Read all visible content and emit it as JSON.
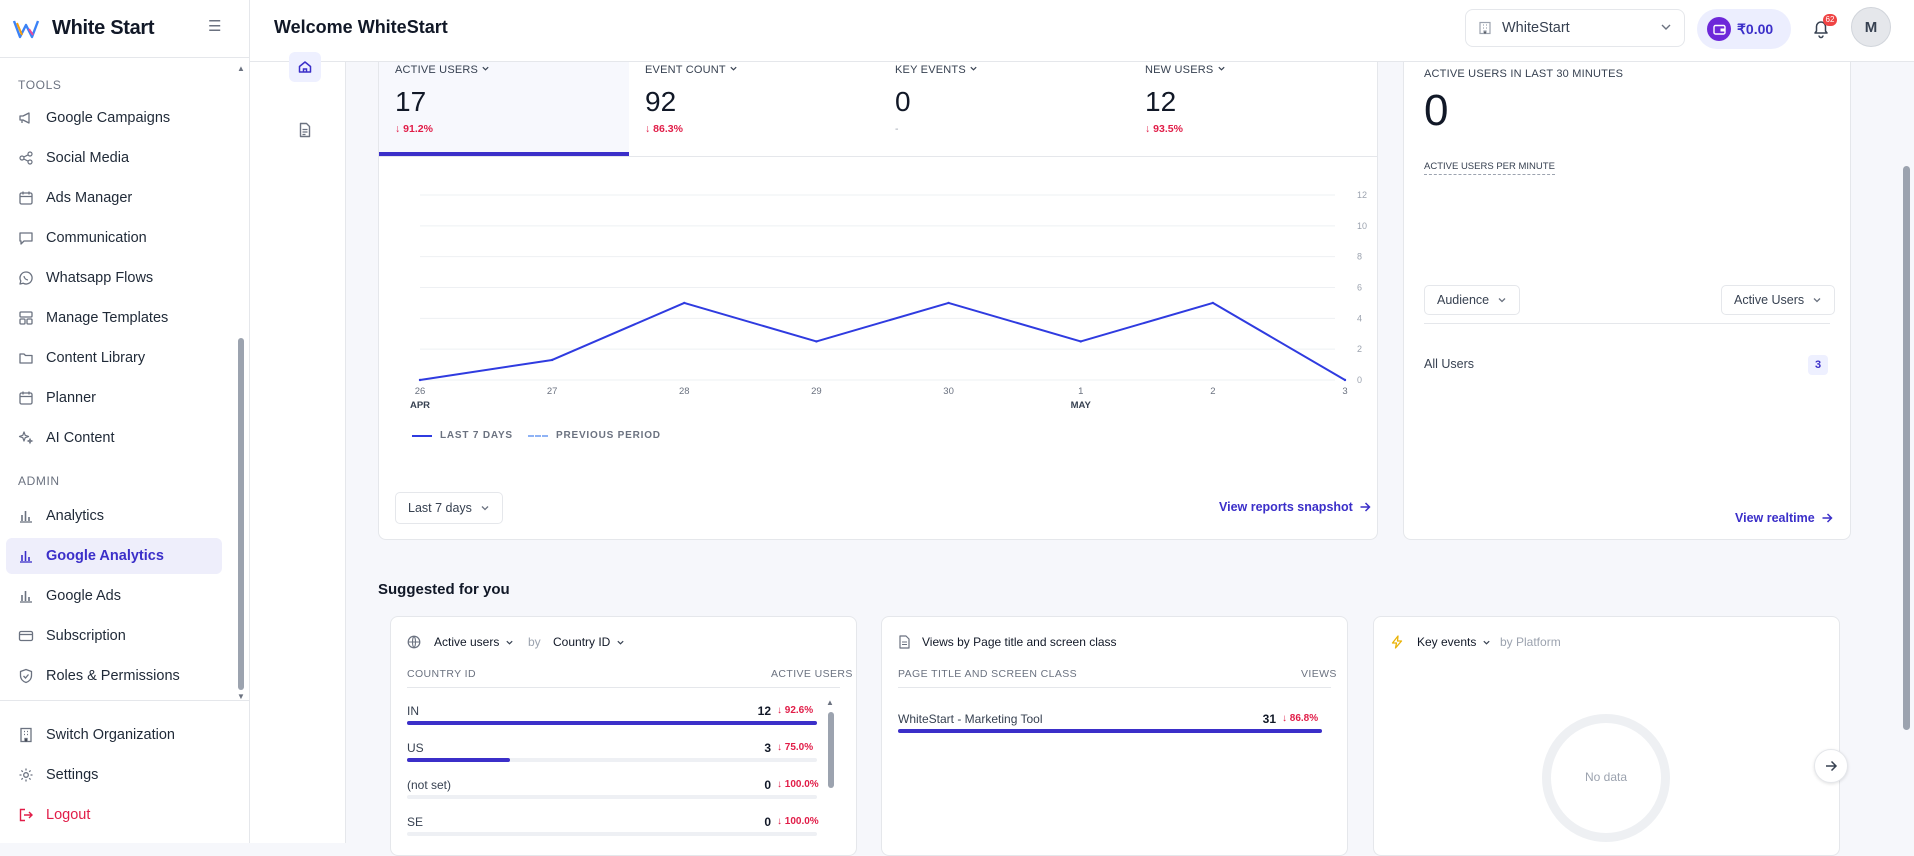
{
  "brand": {
    "name": "White Start"
  },
  "sidebar": {
    "tools_title": "TOOLS",
    "tools": [
      {
        "label": "Google Campaigns",
        "icon": "megaphone-icon"
      },
      {
        "label": "Social Media",
        "icon": "share-icon"
      },
      {
        "label": "Ads Manager",
        "icon": "calendar-icon"
      },
      {
        "label": "Communication",
        "icon": "chat-icon"
      },
      {
        "label": "Whatsapp Flows",
        "icon": "whatsapp-icon"
      },
      {
        "label": "Manage Templates",
        "icon": "template-icon"
      },
      {
        "label": "Content Library",
        "icon": "folder-icon"
      },
      {
        "label": "Planner",
        "icon": "calendar-icon"
      },
      {
        "label": "AI Content",
        "icon": "sparkle-icon"
      }
    ],
    "admin_title": "ADMIN",
    "admin": [
      {
        "label": "Analytics",
        "icon": "bar-chart-icon"
      },
      {
        "label": "Google Analytics",
        "icon": "bar-chart-icon",
        "active": true
      },
      {
        "label": "Google Ads",
        "icon": "bar-chart-icon"
      },
      {
        "label": "Subscription",
        "icon": "card-icon"
      },
      {
        "label": "Roles & Permissions",
        "icon": "shield-icon"
      }
    ],
    "bottom": [
      {
        "label": "Switch Organization",
        "icon": "building-icon"
      },
      {
        "label": "Settings",
        "icon": "gear-icon"
      },
      {
        "label": "Logout",
        "icon": "logout-icon"
      }
    ]
  },
  "header": {
    "welcome": "Welcome WhiteStart",
    "org": "WhiteStart",
    "wallet": "₹0.00",
    "notifications": "62",
    "avatar": "M"
  },
  "metrics": [
    {
      "label": "ACTIVE USERS",
      "value": "17",
      "change": "91.2%"
    },
    {
      "label": "EVENT COUNT",
      "value": "92",
      "change": "86.3%"
    },
    {
      "label": "KEY EVENTS",
      "value": "0",
      "change": "-"
    },
    {
      "label": "NEW USERS",
      "value": "12",
      "change": "93.5%"
    }
  ],
  "chart_data": {
    "type": "line",
    "x": [
      "26",
      "27",
      "28",
      "29",
      "30",
      "1",
      "2",
      "3"
    ],
    "month_labels": [
      "APR",
      "MAY"
    ],
    "series": [
      {
        "name": "LAST 7 DAYS",
        "values": [
          0,
          1.3,
          5,
          2.5,
          5,
          2.5,
          5,
          0
        ]
      }
    ],
    "y_ticks": [
      "12",
      "10",
      "8",
      "6",
      "4",
      "2",
      "0"
    ],
    "ylim": [
      0,
      12
    ],
    "legend": [
      "LAST 7 DAYS",
      "PREVIOUS PERIOD"
    ],
    "colors": {
      "current": "#2f3be0",
      "previous": "#8fb3f5"
    }
  },
  "overview": {
    "range_button": "Last 7 days",
    "snapshot_link": "View reports snapshot"
  },
  "realtime": {
    "title": "ACTIVE USERS IN LAST 30 MINUTES",
    "value": "0",
    "per_minute": "ACTIVE USERS PER MINUTE",
    "audience_btn": "Audience",
    "active_btn": "Active Users",
    "all_users_label": "All Users",
    "all_users_value": "3",
    "link": "View realtime"
  },
  "suggested": {
    "title": "Suggested for you",
    "country_card": {
      "metric": "Active users",
      "by": "by",
      "dimension": "Country ID",
      "col1": "COUNTRY ID",
      "col2": "ACTIVE USERS",
      "rows": [
        {
          "label": "IN",
          "value": "12",
          "change": "92.6%",
          "fill": 1.0
        },
        {
          "label": "US",
          "value": "3",
          "change": "75.0%",
          "fill": 0.25
        },
        {
          "label": "(not set)",
          "value": "0",
          "change": "100.0%",
          "fill": 0
        },
        {
          "label": "SE",
          "value": "0",
          "change": "100.0%",
          "fill": 0
        }
      ]
    },
    "views_card": {
      "title": "Views by Page title and screen class",
      "col1": "PAGE TITLE AND SCREEN CLASS",
      "col2": "VIEWS",
      "rows": [
        {
          "label": "WhiteStart - Marketing Tool",
          "value": "31",
          "change": "86.8%",
          "fill": 1.0
        }
      ]
    },
    "events_card": {
      "metric": "Key events",
      "by": "by Platform",
      "empty": "No data"
    }
  }
}
